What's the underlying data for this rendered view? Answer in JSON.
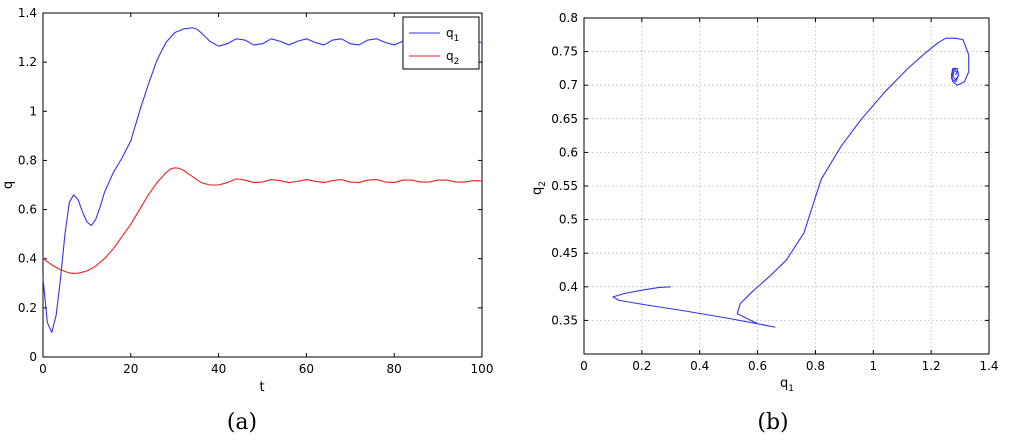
{
  "chart_data": [
    {
      "type": "line",
      "caption": "(a)",
      "xlabel": "t",
      "ylabel": "q",
      "xlim": [
        0,
        100
      ],
      "ylim": [
        0,
        1.4
      ],
      "xticks": [
        0,
        20,
        40,
        60,
        80,
        100
      ],
      "yticks": [
        0,
        0.2,
        0.4,
        0.6,
        0.8,
        1,
        1.2,
        1.4
      ],
      "grid": false,
      "legend_position": "top-right",
      "colors": {
        "q1": "#3333ee",
        "q2": "#ee2222"
      },
      "series": [
        {
          "name": "q1",
          "x": [
            0,
            1,
            2,
            3,
            4,
            5,
            6,
            7,
            8,
            9,
            10,
            11,
            12,
            13,
            14,
            15,
            16,
            18,
            20,
            22,
            24,
            26,
            28,
            30,
            32,
            34,
            35,
            36,
            38,
            40,
            42,
            44,
            46,
            48,
            50,
            52,
            54,
            56,
            58,
            60,
            62,
            64,
            66,
            68,
            70,
            72,
            74,
            76,
            78,
            80,
            82,
            84,
            86,
            88,
            90,
            92,
            94,
            96,
            98,
            100
          ],
          "y": [
            0.32,
            0.14,
            0.1,
            0.17,
            0.32,
            0.5,
            0.63,
            0.66,
            0.64,
            0.59,
            0.55,
            0.535,
            0.56,
            0.61,
            0.67,
            0.71,
            0.75,
            0.81,
            0.88,
            1.0,
            1.11,
            1.21,
            1.28,
            1.32,
            1.335,
            1.34,
            1.335,
            1.32,
            1.285,
            1.265,
            1.275,
            1.295,
            1.29,
            1.27,
            1.275,
            1.295,
            1.285,
            1.27,
            1.285,
            1.295,
            1.28,
            1.27,
            1.29,
            1.295,
            1.275,
            1.27,
            1.29,
            1.295,
            1.28,
            1.27,
            1.285,
            1.295,
            1.28,
            1.27,
            1.29,
            1.295,
            1.275,
            1.27,
            1.285,
            1.28
          ]
        },
        {
          "name": "q2",
          "x": [
            0,
            2,
            4,
            6,
            7,
            8,
            10,
            12,
            14,
            16,
            18,
            20,
            22,
            24,
            26,
            28,
            29,
            30,
            31,
            32,
            34,
            36,
            38,
            40,
            42,
            44,
            46,
            48,
            50,
            52,
            54,
            56,
            58,
            60,
            62,
            64,
            66,
            68,
            70,
            72,
            74,
            76,
            78,
            80,
            82,
            84,
            86,
            88,
            90,
            92,
            94,
            96,
            98,
            100
          ],
          "y": [
            0.4,
            0.375,
            0.355,
            0.342,
            0.34,
            0.341,
            0.35,
            0.37,
            0.4,
            0.44,
            0.49,
            0.54,
            0.6,
            0.66,
            0.71,
            0.75,
            0.765,
            0.77,
            0.768,
            0.76,
            0.735,
            0.71,
            0.7,
            0.7,
            0.71,
            0.725,
            0.72,
            0.71,
            0.712,
            0.722,
            0.718,
            0.71,
            0.715,
            0.722,
            0.715,
            0.71,
            0.718,
            0.722,
            0.712,
            0.71,
            0.72,
            0.722,
            0.712,
            0.71,
            0.72,
            0.72,
            0.712,
            0.712,
            0.72,
            0.72,
            0.712,
            0.712,
            0.718,
            0.716
          ]
        }
      ]
    },
    {
      "type": "line",
      "caption": "(b)",
      "xlabel": "q1",
      "ylabel": "q2",
      "xlim": [
        0,
        1.4
      ],
      "ylim": [
        0.3,
        0.8
      ],
      "xticks": [
        0,
        0.2,
        0.4,
        0.6,
        0.8,
        1,
        1.2,
        1.4
      ],
      "yticks": [
        0.35,
        0.4,
        0.45,
        0.5,
        0.55,
        0.6,
        0.65,
        0.7,
        0.75,
        0.8
      ],
      "grid": true,
      "color": "#3333ee",
      "series": [
        {
          "x": [
            0.3,
            0.26,
            0.2,
            0.14,
            0.1,
            0.12,
            0.2,
            0.35,
            0.5,
            0.66,
            0.6,
            0.53,
            0.54,
            0.58,
            0.64,
            0.7,
            0.76,
            0.82,
            0.89,
            0.96,
            1.04,
            1.12,
            1.18,
            1.22,
            1.25,
            1.28,
            1.31,
            1.33,
            1.33,
            1.315,
            1.29,
            1.275,
            1.27,
            1.275,
            1.29,
            1.295,
            1.285,
            1.27,
            1.275,
            1.29,
            1.295,
            1.285,
            1.275,
            1.28,
            1.29,
            1.285
          ],
          "y": [
            0.4,
            0.399,
            0.395,
            0.39,
            0.385,
            0.38,
            0.374,
            0.364,
            0.353,
            0.34,
            0.345,
            0.36,
            0.375,
            0.392,
            0.415,
            0.44,
            0.48,
            0.56,
            0.61,
            0.65,
            0.69,
            0.725,
            0.748,
            0.762,
            0.77,
            0.77,
            0.768,
            0.745,
            0.72,
            0.705,
            0.7,
            0.705,
            0.715,
            0.725,
            0.725,
            0.715,
            0.705,
            0.71,
            0.722,
            0.725,
            0.715,
            0.708,
            0.713,
            0.722,
            0.72,
            0.715
          ]
        }
      ]
    }
  ]
}
